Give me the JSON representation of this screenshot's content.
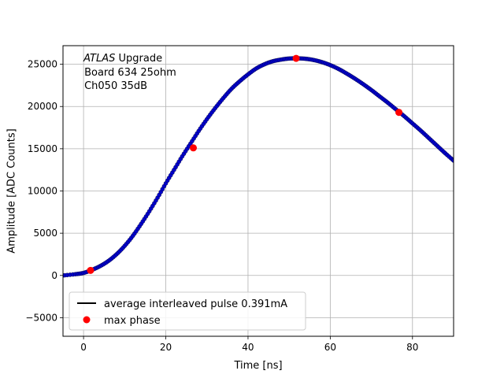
{
  "chart_data": {
    "type": "scatter",
    "title": "",
    "xlabel": "Time [ns]",
    "ylabel": "Amplitude [ADC Counts]",
    "xlim": [
      -5,
      90
    ],
    "ylim": [
      -7200,
      27200
    ],
    "xticks": [
      0,
      20,
      40,
      60,
      80
    ],
    "yticks": [
      -5000,
      0,
      5000,
      10000,
      15000,
      20000,
      25000
    ],
    "grid": true,
    "legend_position": "lower-left",
    "annotation": {
      "experiment": "ATLAS",
      "suffix": " Upgrade",
      "line2": "Board 634 25ohm",
      "line3": "Ch050 35dB"
    },
    "series": [
      {
        "name": "average interleaved pulse 0.391mA",
        "kind": "line+markers",
        "color": "#000000",
        "marker_color": "#0000cc",
        "x": [
          -5,
          -2,
          0,
          2,
          4,
          6,
          8,
          10,
          12,
          14,
          16,
          18,
          20,
          22,
          24,
          26,
          28,
          30,
          32,
          34,
          36,
          38,
          40,
          42,
          44,
          46,
          48,
          50,
          52,
          54,
          56,
          58,
          60,
          62,
          64,
          66,
          68,
          70,
          72,
          74,
          76,
          78,
          80,
          82,
          84,
          86,
          88,
          90
        ],
        "y": [
          0,
          150,
          300,
          650,
          1100,
          1700,
          2500,
          3500,
          4700,
          6100,
          7600,
          9200,
          10900,
          12500,
          14100,
          15600,
          17100,
          18500,
          19800,
          21000,
          22100,
          23000,
          23800,
          24500,
          25000,
          25350,
          25550,
          25680,
          25700,
          25650,
          25500,
          25250,
          24900,
          24450,
          23900,
          23300,
          22650,
          21950,
          21200,
          20450,
          19650,
          18850,
          18000,
          17150,
          16250,
          15350,
          14450,
          13600
        ]
      },
      {
        "name": "max phase",
        "kind": "markers",
        "color": "#ff0000",
        "x": [
          1.7,
          26.7,
          51.7,
          76.7
        ],
        "y": [
          600,
          15100,
          25700,
          19300
        ]
      }
    ]
  }
}
